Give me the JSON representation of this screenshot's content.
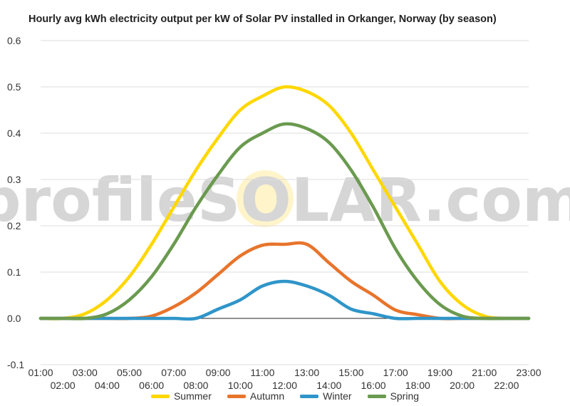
{
  "chart_data": {
    "type": "line",
    "title": "Hourly avg kWh electricity output per kW of Solar PV installed in Orkanger, Norway (by season)",
    "watermark": "profileSOLAR.com",
    "x": [
      "01:00",
      "02:00",
      "03:00",
      "04:00",
      "05:00",
      "06:00",
      "07:00",
      "08:00",
      "09:00",
      "10:00",
      "11:00",
      "12:00",
      "13:00",
      "14:00",
      "15:00",
      "16:00",
      "17:00",
      "18:00",
      "19:00",
      "20:00",
      "21:00",
      "22:00",
      "23:00"
    ],
    "ylim": [
      -0.1,
      0.6
    ],
    "yticks": [
      "-0.1",
      "0.0",
      "0.1",
      "0.2",
      "0.3",
      "0.4",
      "0.5",
      "0.6"
    ],
    "grid": true,
    "legend": "bottom",
    "series": [
      {
        "name": "Summer",
        "color": "#FFD700",
        "values": [
          0.0,
          0.0,
          0.01,
          0.04,
          0.09,
          0.16,
          0.24,
          0.32,
          0.39,
          0.45,
          0.48,
          0.5,
          0.49,
          0.46,
          0.4,
          0.32,
          0.24,
          0.16,
          0.08,
          0.03,
          0.005,
          0.0,
          0.0
        ]
      },
      {
        "name": "Autumn",
        "color": "#E8742C",
        "values": [
          0.0,
          0.0,
          0.0,
          0.0,
          0.0,
          0.005,
          0.025,
          0.055,
          0.095,
          0.135,
          0.158,
          0.16,
          0.16,
          0.12,
          0.08,
          0.05,
          0.018,
          0.008,
          0.0,
          0.0,
          0.0,
          0.0,
          0.0
        ]
      },
      {
        "name": "Winter",
        "color": "#2F95C9",
        "values": [
          0.0,
          0.0,
          0.0,
          0.0,
          0.0,
          0.0,
          0.0,
          0.0,
          0.02,
          0.04,
          0.07,
          0.08,
          0.07,
          0.05,
          0.02,
          0.01,
          0.0,
          0.0,
          0.0,
          0.0,
          0.0,
          0.0,
          0.0
        ]
      },
      {
        "name": "Spring",
        "color": "#6A9A4F",
        "values": [
          0.0,
          0.0,
          0.0,
          0.01,
          0.04,
          0.09,
          0.16,
          0.24,
          0.31,
          0.37,
          0.4,
          0.42,
          0.41,
          0.38,
          0.32,
          0.24,
          0.15,
          0.08,
          0.03,
          0.005,
          0.0,
          0.0,
          0.0
        ]
      }
    ]
  }
}
